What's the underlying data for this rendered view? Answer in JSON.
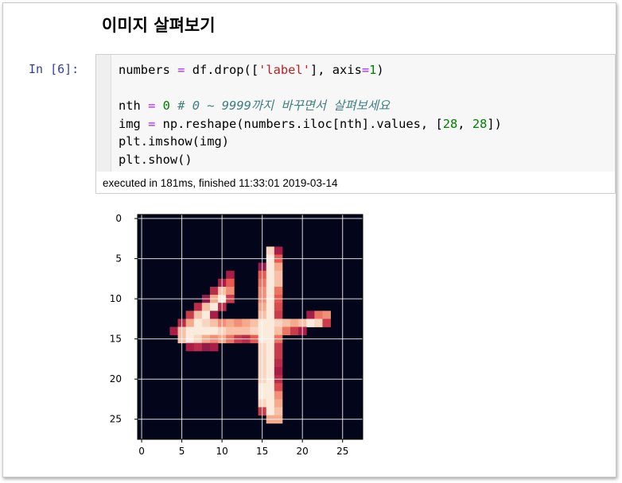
{
  "heading": "이미지 살펴보기",
  "cell": {
    "prompt": "In [6]:",
    "lines": [
      [
        {
          "t": "numbers ",
          "c": ""
        },
        {
          "t": "=",
          "c": "op"
        },
        {
          "t": " df.drop([",
          "c": ""
        },
        {
          "t": "'label'",
          "c": "str"
        },
        {
          "t": "], axis",
          "c": ""
        },
        {
          "t": "=",
          "c": "op"
        },
        {
          "t": "1",
          "c": "num"
        },
        {
          "t": ")",
          "c": ""
        }
      ],
      [],
      [
        {
          "t": "nth ",
          "c": ""
        },
        {
          "t": "=",
          "c": "op"
        },
        {
          "t": " ",
          "c": ""
        },
        {
          "t": "0",
          "c": "num"
        },
        {
          "t": " # 0 ~ 9999까지 바꾸면서 살펴보세요",
          "c": "com"
        }
      ],
      [
        {
          "t": "img ",
          "c": ""
        },
        {
          "t": "=",
          "c": "op"
        },
        {
          "t": " np.reshape(numbers.iloc[nth].values, [",
          "c": ""
        },
        {
          "t": "28",
          "c": "num"
        },
        {
          "t": ", ",
          "c": ""
        },
        {
          "t": "28",
          "c": "num"
        },
        {
          "t": "])",
          "c": ""
        }
      ],
      [
        {
          "t": "plt.imshow(img)",
          "c": ""
        }
      ],
      [
        {
          "t": "plt.show()",
          "c": ""
        }
      ]
    ],
    "exec_info": "executed in 181ms, finished 11:33:01 2019-03-14"
  },
  "plot": {
    "x_ticks": [
      0,
      5,
      10,
      15,
      20,
      25
    ],
    "y_ticks": [
      0,
      5,
      10,
      15,
      20,
      25
    ],
    "background_color": "#03051a",
    "grid_color": "#ffffff",
    "digit_pixels": [
      [
        4,
        16,
        0.95
      ],
      [
        4,
        17,
        0.5
      ],
      [
        5,
        16,
        1.0
      ],
      [
        5,
        17,
        0.7
      ],
      [
        6,
        15,
        0.45
      ],
      [
        6,
        16,
        1.0
      ],
      [
        6,
        17,
        0.85
      ],
      [
        7,
        11,
        0.5
      ],
      [
        7,
        15,
        0.7
      ],
      [
        7,
        16,
        1.0
      ],
      [
        7,
        17,
        0.9
      ],
      [
        8,
        10,
        0.5
      ],
      [
        8,
        11,
        0.7
      ],
      [
        8,
        15,
        0.75
      ],
      [
        8,
        16,
        1.0
      ],
      [
        8,
        17,
        0.9
      ],
      [
        9,
        9,
        0.55
      ],
      [
        9,
        10,
        0.9
      ],
      [
        9,
        11,
        0.8
      ],
      [
        9,
        15,
        0.8
      ],
      [
        9,
        16,
        1.0
      ],
      [
        9,
        17,
        0.75
      ],
      [
        10,
        8,
        0.45
      ],
      [
        10,
        9,
        0.85
      ],
      [
        10,
        10,
        1.0
      ],
      [
        10,
        11,
        0.6
      ],
      [
        10,
        15,
        0.8
      ],
      [
        10,
        16,
        1.0
      ],
      [
        10,
        17,
        0.7
      ],
      [
        11,
        7,
        0.55
      ],
      [
        11,
        8,
        0.9
      ],
      [
        11,
        9,
        1.0
      ],
      [
        11,
        10,
        0.55
      ],
      [
        11,
        15,
        0.85
      ],
      [
        11,
        16,
        1.0
      ],
      [
        11,
        17,
        0.65
      ],
      [
        12,
        6,
        0.6
      ],
      [
        12,
        7,
        0.9
      ],
      [
        12,
        8,
        1.0
      ],
      [
        12,
        9,
        0.5
      ],
      [
        12,
        15,
        0.9
      ],
      [
        12,
        16,
        1.0
      ],
      [
        12,
        17,
        0.6
      ],
      [
        12,
        21,
        0.5
      ],
      [
        12,
        22,
        0.75
      ],
      [
        12,
        23,
        0.8
      ],
      [
        13,
        5,
        0.55
      ],
      [
        13,
        6,
        0.85
      ],
      [
        13,
        7,
        1.0
      ],
      [
        13,
        8,
        0.95
      ],
      [
        13,
        9,
        0.9
      ],
      [
        13,
        10,
        0.8
      ],
      [
        13,
        11,
        0.85
      ],
      [
        13,
        12,
        0.8
      ],
      [
        13,
        13,
        0.85
      ],
      [
        13,
        14,
        0.9
      ],
      [
        13,
        15,
        1.0
      ],
      [
        13,
        16,
        1.0
      ],
      [
        13,
        17,
        0.95
      ],
      [
        13,
        18,
        0.9
      ],
      [
        13,
        19,
        0.85
      ],
      [
        13,
        20,
        0.9
      ],
      [
        13,
        21,
        1.0
      ],
      [
        13,
        22,
        0.95
      ],
      [
        13,
        23,
        0.6
      ],
      [
        14,
        4,
        0.5
      ],
      [
        14,
        5,
        0.9
      ],
      [
        14,
        6,
        1.0
      ],
      [
        14,
        7,
        1.0
      ],
      [
        14,
        8,
        1.0
      ],
      [
        14,
        9,
        1.0
      ],
      [
        14,
        10,
        0.95
      ],
      [
        14,
        11,
        0.9
      ],
      [
        14,
        12,
        0.9
      ],
      [
        14,
        13,
        0.9
      ],
      [
        14,
        14,
        0.95
      ],
      [
        14,
        15,
        1.0
      ],
      [
        14,
        16,
        1.0
      ],
      [
        14,
        17,
        0.9
      ],
      [
        14,
        18,
        0.75
      ],
      [
        14,
        19,
        0.6
      ],
      [
        14,
        20,
        0.5
      ],
      [
        15,
        5,
        0.9
      ],
      [
        15,
        6,
        1.0
      ],
      [
        15,
        7,
        0.95
      ],
      [
        15,
        8,
        0.85
      ],
      [
        15,
        9,
        0.8
      ],
      [
        15,
        10,
        0.85
      ],
      [
        15,
        11,
        0.75
      ],
      [
        15,
        12,
        0.6
      ],
      [
        15,
        13,
        0.55
      ],
      [
        15,
        14,
        0.7
      ],
      [
        15,
        15,
        1.0
      ],
      [
        15,
        16,
        1.0
      ],
      [
        15,
        17,
        0.75
      ],
      [
        16,
        6,
        0.5
      ],
      [
        16,
        7,
        0.55
      ],
      [
        16,
        8,
        0.45
      ],
      [
        16,
        9,
        0.5
      ],
      [
        16,
        15,
        0.95
      ],
      [
        16,
        16,
        1.0
      ],
      [
        16,
        17,
        0.6
      ],
      [
        17,
        15,
        0.95
      ],
      [
        17,
        16,
        1.0
      ],
      [
        17,
        17,
        0.6
      ],
      [
        18,
        15,
        0.95
      ],
      [
        18,
        16,
        1.0
      ],
      [
        18,
        17,
        0.55
      ],
      [
        19,
        15,
        0.95
      ],
      [
        19,
        16,
        1.0
      ],
      [
        19,
        17,
        0.5
      ],
      [
        20,
        15,
        0.95
      ],
      [
        20,
        16,
        1.0
      ],
      [
        20,
        17,
        0.55
      ],
      [
        21,
        15,
        1.0
      ],
      [
        21,
        16,
        1.0
      ],
      [
        21,
        17,
        0.65
      ],
      [
        22,
        15,
        1.0
      ],
      [
        22,
        16,
        1.0
      ],
      [
        22,
        17,
        0.8
      ],
      [
        23,
        15,
        0.95
      ],
      [
        23,
        16,
        1.0
      ],
      [
        23,
        17,
        0.85
      ],
      [
        24,
        15,
        0.6
      ],
      [
        24,
        16,
        1.0
      ],
      [
        24,
        17,
        0.9
      ],
      [
        25,
        16,
        0.85
      ],
      [
        25,
        17,
        0.85
      ]
    ]
  }
}
